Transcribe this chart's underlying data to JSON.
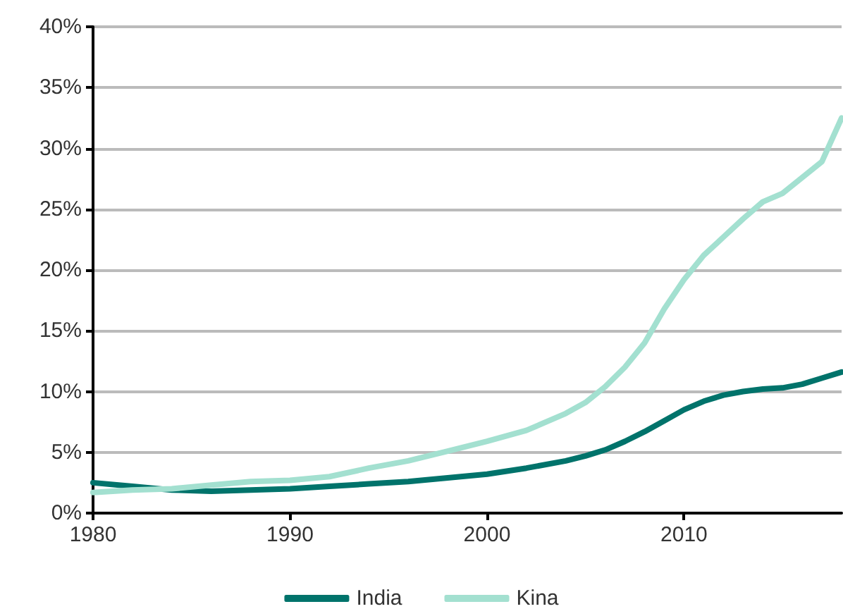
{
  "chart_data": {
    "type": "line",
    "x": [
      1980,
      1982,
      1984,
      1986,
      1988,
      1990,
      1992,
      1994,
      1996,
      1998,
      2000,
      2002,
      2004,
      2005,
      2006,
      2007,
      2008,
      2009,
      2010,
      2011,
      2012,
      2013,
      2014,
      2015,
      2016,
      2017,
      2018
    ],
    "series": [
      {
        "name": "India",
        "color": "#00736b",
        "values": [
          2.5,
          2.2,
          1.9,
          1.8,
          1.9,
          2.0,
          2.2,
          2.4,
          2.6,
          2.9,
          3.2,
          3.7,
          4.3,
          4.7,
          5.2,
          5.9,
          6.7,
          7.6,
          8.5,
          9.2,
          9.7,
          10.0,
          10.2,
          10.3,
          10.6,
          11.1,
          11.6
        ]
      },
      {
        "name": "Kina",
        "color": "#a3e0d0",
        "values": [
          1.7,
          1.9,
          2.0,
          2.3,
          2.6,
          2.7,
          3.0,
          3.7,
          4.3,
          5.1,
          5.9,
          6.8,
          8.2,
          9.1,
          10.4,
          12.0,
          14.0,
          16.8,
          19.2,
          21.2,
          22.7,
          24.2,
          25.6,
          26.3,
          27.6,
          28.9,
          32.5
        ]
      }
    ],
    "xlim": [
      1980,
      2018
    ],
    "xticks": [
      1980,
      1990,
      2000,
      2010
    ],
    "ylim": [
      0,
      40
    ],
    "yticks": [
      {
        "value": 0,
        "label": "0%"
      },
      {
        "value": 5,
        "label": "5%"
      },
      {
        "value": 10,
        "label": "10%"
      },
      {
        "value": 15,
        "label": "15%"
      },
      {
        "value": 20,
        "label": "20%"
      },
      {
        "value": 25,
        "label": "25%"
      },
      {
        "value": 30,
        "label": "30%"
      },
      {
        "value": 35,
        "label": "35%"
      },
      {
        "value": 40,
        "label": "40%"
      }
    ],
    "grid": "y",
    "legend": "bottom",
    "marker": "none",
    "line_style": "solid"
  }
}
